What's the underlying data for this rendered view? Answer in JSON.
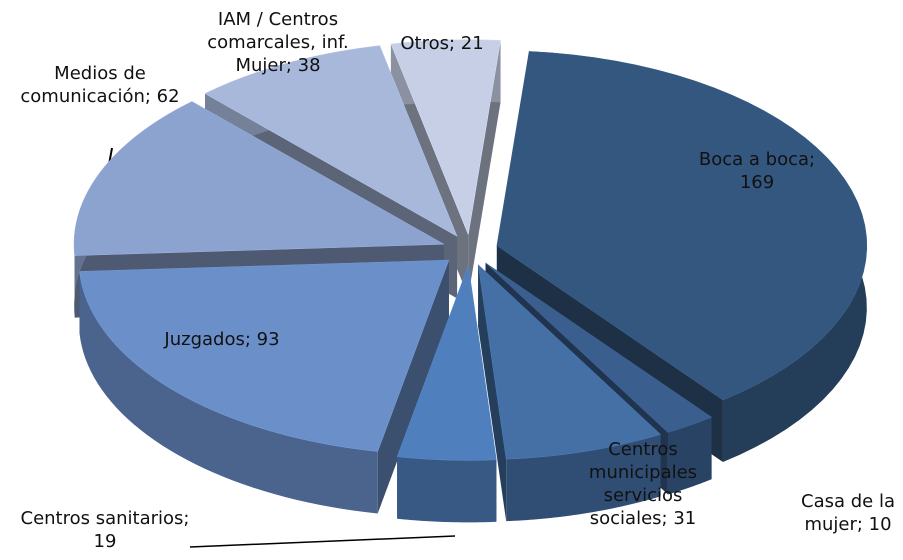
{
  "chart_data": {
    "type": "pie3d",
    "values": [
      169,
      10,
      31,
      19,
      93,
      62,
      38,
      21
    ],
    "value_labels": [
      "Boca a boca; 169",
      "Casa de la mujer; 10",
      "Centros municipales servicios sociales; 31",
      "Centros sanitarios; 19",
      "Juzgados; 93",
      "Medios de comunicación; 62",
      "IAM / Centros comarcales, inf. Mujer; 38",
      "Otros; 21"
    ],
    "colors": [
      "#34577f",
      "#3a5f8f",
      "#4470a6",
      "#4f7fbd",
      "#6b8fc9",
      "#8da3cf",
      "#a7b8db",
      "#c6cfe6"
    ]
  }
}
